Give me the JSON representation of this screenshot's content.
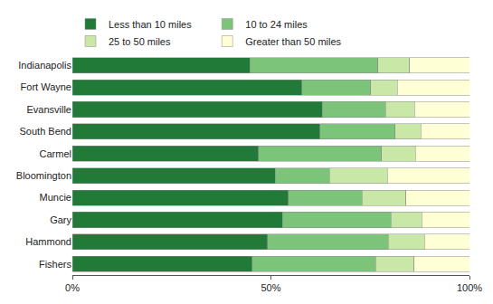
{
  "chart_data": {
    "type": "bar",
    "orientation": "horizontal",
    "stacked": true,
    "grid": false,
    "legend": "top",
    "categories": [
      "Indianapolis",
      "Fort Wayne",
      "Evansville",
      "South Bend",
      "Carmel",
      "Bloomington",
      "Muncie",
      "Gary",
      "Hammond",
      "Fishers"
    ],
    "series": [
      {
        "name": "Less than 10 miles",
        "color": "#217a37",
        "values": [
          44.7,
          57.8,
          62.9,
          62.4,
          46.9,
          51.1,
          54.4,
          52.9,
          49.1,
          45.3
        ]
      },
      {
        "name": "10 to 24 miles",
        "color": "#7cc47a",
        "values": [
          32.2,
          17.3,
          16.0,
          18.9,
          30.9,
          13.6,
          18.5,
          27.3,
          30.5,
          31.1
        ]
      },
      {
        "name": "25 to 50 miles",
        "color": "#c9e7a6",
        "values": [
          8.0,
          6.7,
          7.3,
          6.5,
          8.6,
          14.6,
          11.1,
          7.8,
          9.1,
          9.6
        ]
      },
      {
        "name": "Greater than 50 miles",
        "color": "#ffffd6",
        "values": [
          15.1,
          18.2,
          13.8,
          12.2,
          13.6,
          20.7,
          16.0,
          12.0,
          11.3,
          14.0
        ]
      }
    ],
    "xlim": [
      0,
      100
    ],
    "xticks": [
      {
        "value": 0,
        "label": "0%"
      },
      {
        "value": 50,
        "label": "50%"
      },
      {
        "value": 100,
        "label": "100%"
      }
    ]
  }
}
